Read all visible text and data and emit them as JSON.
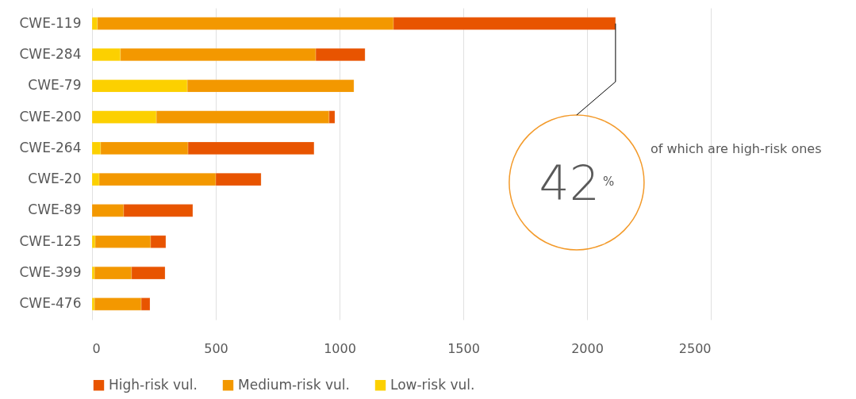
{
  "chart_data": {
    "type": "bar",
    "orientation": "horizontal",
    "stacked": true,
    "categories": [
      "CWE-119",
      "CWE-284",
      "CWE-79",
      "CWE-200",
      "CWE-264",
      "CWE-20",
      "CWE-89",
      "CWE-125",
      "CWE-399",
      "CWE-476"
    ],
    "series": [
      {
        "name": "Low-risk vul.",
        "color": "#fcd000",
        "values": [
          22,
          115,
          385,
          260,
          35,
          29,
          null,
          13,
          10,
          10
        ]
      },
      {
        "name": "Medium-risk vul.",
        "color": "#f39800",
        "values": [
          1196,
          789,
          673,
          698,
          353,
          471,
          128,
          224,
          150,
          189
        ]
      },
      {
        "name": "High-risk vul.",
        "color": "#e85400",
        "values": [
          897,
          199,
          null,
          23,
          509,
          183,
          279,
          61,
          135,
          35
        ]
      }
    ],
    "xlim": [
      0,
      2500
    ],
    "xticks": [
      0,
      500,
      1000,
      1500,
      2000,
      2500
    ],
    "grid": "x",
    "legend": "bottom",
    "annotations": [
      {
        "text": "42%",
        "x": 2115,
        "y": "CWE-119"
      },
      "of which are high-risk ones"
    ]
  }
}
